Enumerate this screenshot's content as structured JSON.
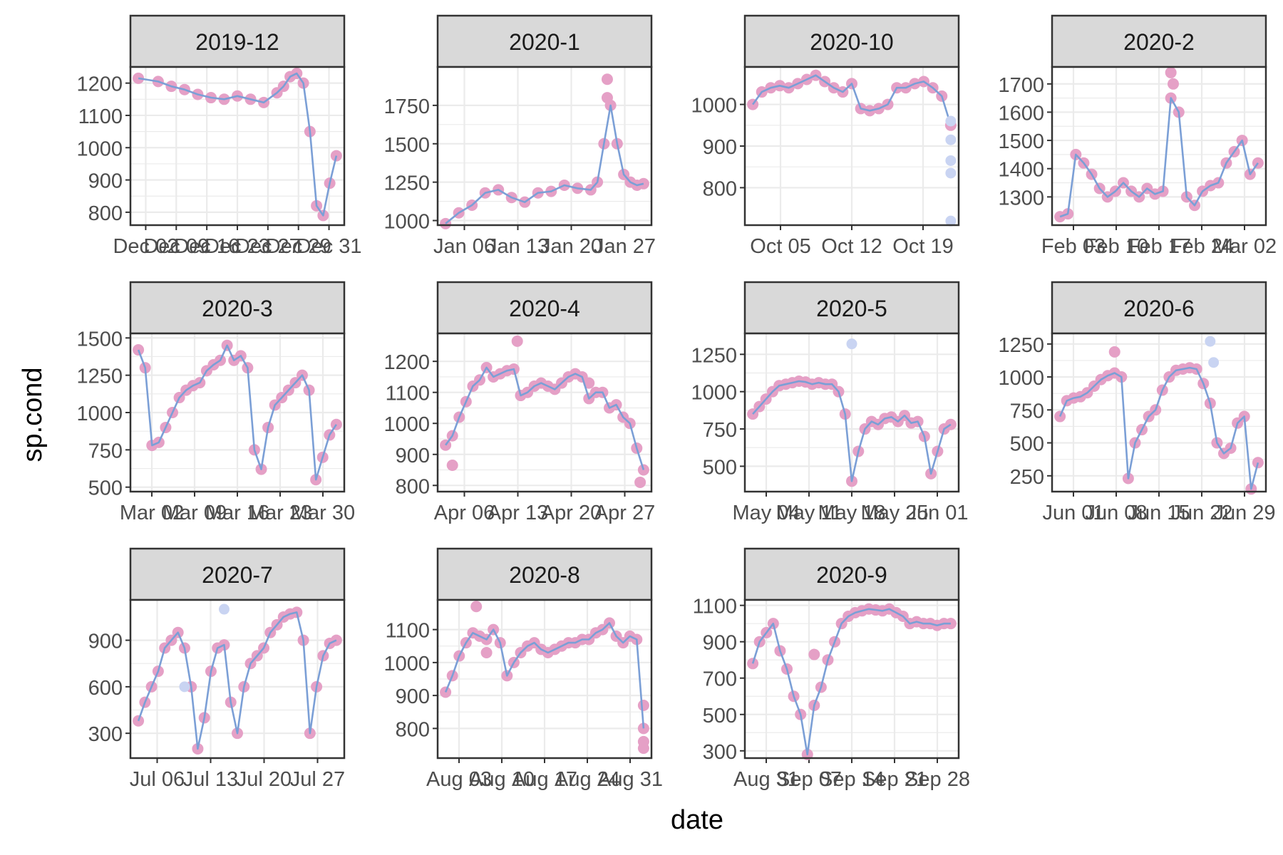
{
  "xlabel": "date",
  "ylabel": "sp.cond",
  "colors": {
    "points": "#e5a0c6",
    "line": "#7b9fd6",
    "flagged": "#c9d4f2",
    "strip_bg": "#d9d9d9",
    "grid": "#ebebeb",
    "border": "#333333",
    "text": "#4d4d4d"
  },
  "chart_data": [
    {
      "type": "line",
      "title": "2019-12",
      "ylim": [
        760,
        1250
      ],
      "yticks": [
        800,
        900,
        1000,
        1100,
        1200
      ],
      "xticks": [
        "Dec 02",
        "Dec 09",
        "Dec 16",
        "Dec 23",
        "Dec 27",
        "Dec 29",
        "Dec 31"
      ],
      "x": [
        0,
        3,
        5,
        7,
        9,
        11,
        13,
        15,
        17,
        19,
        21,
        22,
        23,
        24,
        25,
        26,
        27,
        28,
        29,
        30
      ],
      "values": [
        1215,
        1205,
        1190,
        1180,
        1165,
        1155,
        1150,
        1160,
        1150,
        1140,
        1170,
        1190,
        1220,
        1230,
        1200,
        1050,
        820,
        790,
        890,
        975
      ],
      "flagged": [],
      "outliers": []
    },
    {
      "type": "line",
      "title": "2020-1",
      "ylim": [
        970,
        2000
      ],
      "yticks": [
        1000,
        1250,
        1500,
        1750
      ],
      "xticks": [
        "Jan 06",
        "Jan 13",
        "Jan 20",
        "Jan 27"
      ],
      "x": [
        0,
        2,
        4,
        6,
        8,
        10,
        12,
        14,
        16,
        18,
        20,
        22,
        23,
        24,
        25,
        26,
        27,
        28,
        29,
        30
      ],
      "values": [
        980,
        1050,
        1100,
        1180,
        1200,
        1150,
        1120,
        1180,
        1190,
        1230,
        1210,
        1200,
        1250,
        1500,
        1750,
        1500,
        1300,
        1250,
        1230,
        1240
      ],
      "flagged": [],
      "outliers": [
        [
          24.5,
          1920
        ],
        [
          24.5,
          1800
        ]
      ]
    },
    {
      "type": "line",
      "title": "2020-10",
      "ylim": [
        710,
        1090
      ],
      "yticks": [
        800,
        900,
        1000
      ],
      "xticks": [
        "Oct 05",
        "Oct 12",
        "Oct 19"
      ],
      "x": [
        0,
        1,
        2,
        3,
        4,
        5,
        6,
        7,
        8,
        9,
        10,
        11,
        12,
        13,
        14,
        15,
        16,
        17,
        18,
        19,
        20,
        21,
        22
      ],
      "values": [
        1000,
        1030,
        1040,
        1045,
        1040,
        1050,
        1060,
        1070,
        1055,
        1040,
        1030,
        1050,
        990,
        985,
        990,
        1000,
        1040,
        1040,
        1050,
        1055,
        1040,
        1020,
        950
      ],
      "flagged": [
        [
          22,
          960
        ],
        [
          22,
          915
        ],
        [
          22,
          865
        ],
        [
          22,
          835
        ],
        [
          22,
          720
        ]
      ],
      "outliers": []
    },
    {
      "type": "line",
      "title": "2020-2",
      "ylim": [
        1200,
        1760
      ],
      "yticks": [
        1300,
        1400,
        1500,
        1600,
        1700
      ],
      "xticks": [
        "Feb 03",
        "Feb 10",
        "Feb 17",
        "Feb 24",
        "Mar 02"
      ],
      "x": [
        0,
        1,
        2,
        3,
        4,
        5,
        6,
        7,
        8,
        9,
        10,
        11,
        12,
        13,
        14,
        15,
        16,
        17,
        18,
        19,
        20,
        21,
        22,
        23,
        24,
        25
      ],
      "values": [
        1230,
        1240,
        1450,
        1420,
        1380,
        1330,
        1300,
        1320,
        1350,
        1320,
        1300,
        1330,
        1310,
        1320,
        1650,
        1600,
        1300,
        1270,
        1320,
        1340,
        1350,
        1420,
        1460,
        1500,
        1380,
        1420
      ],
      "flagged": [],
      "outliers": [
        [
          14,
          1740
        ],
        [
          14.3,
          1700
        ]
      ]
    },
    {
      "type": "line",
      "title": "2020-3",
      "ylim": [
        470,
        1530
      ],
      "yticks": [
        500,
        750,
        1000,
        1250,
        1500
      ],
      "xticks": [
        "Mar 02",
        "Mar 09",
        "Mar 16",
        "Mar 23",
        "Mar 30"
      ],
      "x": [
        0,
        1,
        2,
        3,
        4,
        5,
        6,
        7,
        8,
        9,
        10,
        11,
        12,
        13,
        14,
        15,
        16,
        17,
        18,
        19,
        20,
        21,
        22,
        23,
        24,
        25,
        26,
        27,
        28,
        29
      ],
      "values": [
        1420,
        1300,
        780,
        800,
        900,
        1000,
        1100,
        1150,
        1180,
        1200,
        1280,
        1320,
        1350,
        1450,
        1350,
        1380,
        1300,
        750,
        620,
        900,
        1050,
        1100,
        1150,
        1200,
        1250,
        1150,
        550,
        700,
        850,
        920
      ],
      "flagged": [],
      "outliers": []
    },
    {
      "type": "line",
      "title": "2020-4",
      "ylim": [
        780,
        1290
      ],
      "yticks": [
        800,
        900,
        1000,
        1100,
        1200
      ],
      "xticks": [
        "Apr 06",
        "Apr 13",
        "Apr 20",
        "Apr 27"
      ],
      "x": [
        0,
        1,
        2,
        3,
        4,
        5,
        6,
        7,
        8,
        9,
        10,
        11,
        12,
        13,
        14,
        15,
        16,
        17,
        18,
        19,
        20,
        21,
        22,
        23,
        24,
        25,
        26,
        27,
        28,
        29
      ],
      "values": [
        930,
        960,
        1020,
        1070,
        1120,
        1140,
        1180,
        1150,
        1160,
        1170,
        1175,
        1090,
        1100,
        1120,
        1130,
        1120,
        1110,
        1130,
        1150,
        1160,
        1150,
        1080,
        1100,
        1100,
        1050,
        1060,
        1020,
        1000,
        920,
        850
      ],
      "flagged": [],
      "outliers": [
        [
          1,
          865
        ],
        [
          10.5,
          1265
        ],
        [
          21,
          1130
        ],
        [
          28.5,
          810
        ]
      ]
    },
    {
      "type": "line",
      "title": "2020-5",
      "ylim": [
        330,
        1390
      ],
      "yticks": [
        500,
        750,
        1000,
        1250
      ],
      "xticks": [
        "May 04",
        "May 11",
        "May 18",
        "May 25",
        "Jun 01"
      ],
      "x": [
        0,
        1,
        2,
        3,
        4,
        5,
        6,
        7,
        8,
        9,
        10,
        11,
        12,
        13,
        14,
        15,
        16,
        17,
        18,
        19,
        20,
        21,
        22,
        23,
        24,
        25,
        26,
        27,
        28,
        29,
        30
      ],
      "values": [
        850,
        900,
        950,
        1000,
        1040,
        1050,
        1060,
        1070,
        1065,
        1050,
        1060,
        1050,
        1050,
        1000,
        850,
        400,
        600,
        750,
        800,
        780,
        820,
        830,
        800,
        840,
        790,
        800,
        700,
        450,
        600,
        750,
        780
      ],
      "flagged": [
        [
          15,
          1320
        ]
      ],
      "outliers": []
    },
    {
      "type": "line",
      "title": "2020-6",
      "ylim": [
        130,
        1330
      ],
      "yticks": [
        250,
        500,
        750,
        1000,
        1250
      ],
      "xticks": [
        "Jun 01",
        "Jun 08",
        "Jun 15",
        "Jun 22",
        "Jun 29"
      ],
      "x": [
        0,
        1,
        2,
        3,
        4,
        5,
        6,
        7,
        8,
        9,
        10,
        11,
        12,
        13,
        14,
        15,
        16,
        17,
        18,
        19,
        20,
        21,
        22,
        23,
        24,
        25,
        26,
        27,
        28,
        29
      ],
      "values": [
        700,
        820,
        840,
        850,
        880,
        930,
        980,
        1010,
        1030,
        1000,
        230,
        500,
        600,
        700,
        750,
        900,
        1000,
        1050,
        1060,
        1070,
        1060,
        950,
        800,
        500,
        420,
        460,
        650,
        700,
        150,
        350
      ],
      "flagged": [
        [
          22,
          1270
        ],
        [
          22.5,
          1110
        ]
      ],
      "outliers": [
        [
          8,
          1190
        ]
      ]
    },
    {
      "type": "line",
      "title": "2020-7",
      "ylim": [
        140,
        1160
      ],
      "yticks": [
        300,
        600,
        900
      ],
      "xticks": [
        "Jul 06",
        "Jul 13",
        "Jul 20",
        "Jul 27"
      ],
      "x": [
        0,
        1,
        2,
        3,
        4,
        5,
        6,
        7,
        8,
        9,
        10,
        11,
        12,
        13,
        14,
        15,
        16,
        17,
        18,
        19,
        20,
        21,
        22,
        23,
        24,
        25,
        26,
        27,
        28,
        29,
        30
      ],
      "values": [
        380,
        500,
        600,
        700,
        850,
        900,
        950,
        850,
        600,
        200,
        400,
        700,
        850,
        870,
        500,
        300,
        600,
        750,
        800,
        850,
        950,
        1000,
        1050,
        1070,
        1080,
        900,
        300,
        600,
        800,
        880,
        900
      ],
      "flagged": [
        [
          13,
          1100
        ],
        [
          7,
          600
        ]
      ],
      "outliers": []
    },
    {
      "type": "line",
      "title": "2020-8",
      "ylim": [
        710,
        1190
      ],
      "yticks": [
        800,
        900,
        1000,
        1100
      ],
      "xticks": [
        "Aug 03",
        "Aug 10",
        "Aug 17",
        "Aug 24",
        "Aug 31"
      ],
      "x": [
        0,
        1,
        2,
        3,
        4,
        5,
        6,
        7,
        8,
        9,
        10,
        11,
        12,
        13,
        14,
        15,
        16,
        17,
        18,
        19,
        20,
        21,
        22,
        23,
        24,
        25,
        26,
        27,
        28,
        29
      ],
      "values": [
        910,
        960,
        1020,
        1060,
        1090,
        1080,
        1070,
        1100,
        1060,
        960,
        1000,
        1030,
        1050,
        1060,
        1040,
        1030,
        1040,
        1050,
        1060,
        1060,
        1070,
        1070,
        1090,
        1100,
        1120,
        1080,
        1060,
        1080,
        1070,
        800
      ],
      "flagged": [],
      "outliers": [
        [
          4.5,
          1170
        ],
        [
          6,
          1030
        ],
        [
          29,
          760
        ],
        [
          29,
          740
        ],
        [
          29,
          870
        ]
      ]
    },
    {
      "type": "line",
      "title": "2020-9",
      "ylim": [
        260,
        1130
      ],
      "yticks": [
        300,
        500,
        700,
        900,
        1100
      ],
      "xticks": [
        "Aug 31",
        "Sep 07",
        "Sep 14",
        "Sep 21",
        "Sep 28"
      ],
      "x": [
        0,
        1,
        2,
        3,
        4,
        5,
        6,
        7,
        8,
        9,
        10,
        11,
        12,
        13,
        14,
        15,
        16,
        17,
        18,
        19,
        20,
        21,
        22,
        23,
        24,
        25,
        26,
        27,
        28,
        29
      ],
      "values": [
        780,
        900,
        950,
        1000,
        850,
        750,
        600,
        500,
        280,
        550,
        650,
        800,
        900,
        1000,
        1040,
        1060,
        1070,
        1080,
        1075,
        1070,
        1080,
        1060,
        1040,
        1000,
        1010,
        1000,
        1000,
        990,
        1000,
        1000
      ],
      "flagged": [],
      "outliers": [
        [
          9,
          830
        ]
      ]
    }
  ]
}
